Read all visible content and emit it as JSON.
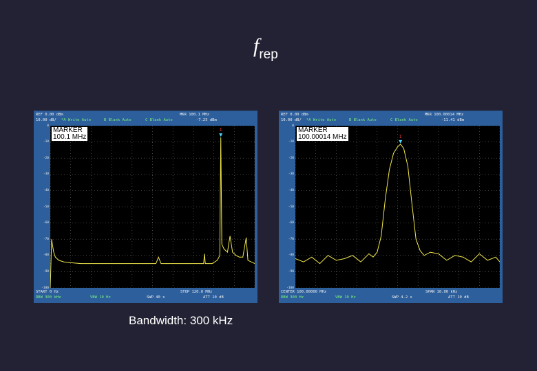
{
  "slide": {
    "title_main": "f",
    "title_sub": "rep",
    "caption": "Bandwidth: 300 kHz"
  },
  "chart_data": [
    {
      "type": "line",
      "title": "",
      "header": {
        "ref": "REF 0.00 dBm",
        "scale": "10.00 dB/",
        "trace_a": "*A Write Auto",
        "trace_b": "B Blank Auto",
        "trace_c": "C Blank Auto",
        "marker_freq": "MKR 100.1 MHz",
        "marker_level": "-7.25 dBm"
      },
      "marker_box": [
        "MARKER",
        "100.1 MHz"
      ],
      "marker_label": "1",
      "footer": {
        "left": "START 0 Hz",
        "center": "",
        "right": "STOP 120.0 MHz",
        "rbw": "RBW 300 kHz",
        "vbw": "VBW 10 Hz",
        "swp": "SWP 40 s",
        "att": "ATT 10 dB"
      },
      "yticks": [
        "0",
        "-10",
        "-20",
        "-30",
        "-40",
        "-50",
        "-60",
        "-70",
        "-80",
        "-90",
        "-100"
      ],
      "colors": {
        "trace": "#f2e84a",
        "marker": "#4dd8ff",
        "marker_label": "#ff3b3b",
        "grid": "#6e6e6e"
      },
      "x_unit": "MHz",
      "y_unit": "dBm",
      "xlim": [
        0,
        120
      ],
      "ylim": [
        -100,
        0
      ],
      "series": [
        {
          "x": [
            0,
            0.8,
            1.2,
            2,
            3,
            5,
            8,
            12,
            18,
            25,
            35,
            50,
            62,
            63.5,
            65,
            80,
            90,
            90.5,
            91,
            95,
            98,
            99.5,
            100.1,
            100.7,
            102,
            104,
            105.5,
            107,
            109,
            111,
            113,
            115,
            116,
            120
          ],
          "y": [
            -100,
            -70,
            -73,
            -78,
            -81,
            -83,
            -84,
            -84.5,
            -85,
            -85,
            -85,
            -85,
            -85,
            -81,
            -85,
            -85,
            -85,
            -79,
            -85,
            -85,
            -83,
            -80,
            -7.25,
            -73,
            -76,
            -78,
            -68,
            -78,
            -80,
            -81,
            -81,
            -69,
            -83,
            -85
          ]
        }
      ],
      "marker": {
        "x": 100.1,
        "y": -7.25
      }
    },
    {
      "type": "line",
      "title": "",
      "header": {
        "ref": "REF 0.00 dBm",
        "scale": "10.00 dB/",
        "trace_a": "*A Write Auto",
        "trace_b": "B Blank Auto",
        "trace_c": "C Blank Auto",
        "marker_freq": "MKR 100.00014 MHz",
        "marker_level": "-11.41 dBm"
      },
      "marker_box": [
        "MARKER",
        "100.00014 MHz"
      ],
      "marker_label": "1",
      "footer": {
        "left": "CENTER 100.00000 MHz",
        "center": "",
        "right": "SPAN 10.00 kHz",
        "rbw": "RBW 300 Hz",
        "vbw": "VBW 10 Hz",
        "swp": "SWP 4.2 s",
        "att": "ATT 10 dB"
      },
      "yticks": [
        "0",
        "-10",
        "-20",
        "-30",
        "-40",
        "-50",
        "-60",
        "-70",
        "-80",
        "-90",
        "-100"
      ],
      "colors": {
        "trace": "#f2e84a",
        "marker": "#4dd8ff",
        "marker_label": "#ff3b3b",
        "grid": "#6e6e6e"
      },
      "x_unit": "kHz offset",
      "y_unit": "dBm",
      "xlim": [
        -5,
        5
      ],
      "ylim": [
        -100,
        0
      ],
      "series": [
        {
          "x": [
            -5,
            -4.6,
            -4.2,
            -3.8,
            -3.4,
            -3,
            -2.6,
            -2.2,
            -1.8,
            -1.4,
            -1.2,
            -1,
            -0.8,
            -0.6,
            -0.4,
            -0.2,
            0,
            0.14,
            0.3,
            0.5,
            0.7,
            0.9,
            1.1,
            1.3,
            1.6,
            2,
            2.4,
            2.8,
            3.2,
            3.6,
            4,
            4.4,
            4.8,
            5
          ],
          "y": [
            -82,
            -84,
            -81,
            -85,
            -80,
            -83,
            -82,
            -80,
            -84,
            -79,
            -81,
            -78,
            -68,
            -45,
            -27,
            -17,
            -13,
            -11.41,
            -14,
            -25,
            -48,
            -70,
            -77,
            -80,
            -78,
            -79,
            -83,
            -80,
            -81,
            -84,
            -79,
            -83,
            -81,
            -84
          ]
        }
      ],
      "marker": {
        "x": 0.14,
        "y": -11.41
      }
    }
  ]
}
